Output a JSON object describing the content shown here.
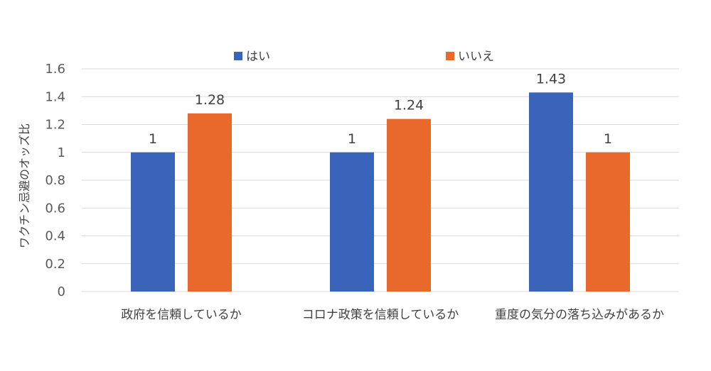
{
  "chart_data": {
    "type": "bar",
    "title": "",
    "xlabel": "",
    "ylabel": "ワクチン忌避のオッズ比",
    "categories": [
      "政府を信頼しているか",
      "コロナ政策を信頼しているか",
      "重度の気分の落ち込みがあるか"
    ],
    "series": [
      {
        "name": "はい",
        "color": "#3a64b9",
        "values": [
          1,
          1,
          1.43
        ]
      },
      {
        "name": "いいえ",
        "color": "#e8692b",
        "values": [
          1.28,
          1.24,
          1
        ]
      }
    ],
    "value_labels": [
      [
        "1",
        "1",
        "1.43"
      ],
      [
        "1.28",
        "1.24",
        "1"
      ]
    ],
    "ylim": [
      0,
      1.6
    ],
    "yticks": [
      "0",
      "0.2",
      "0.4",
      "0.6",
      "0.8",
      "1",
      "1.2",
      "1.4",
      "1.6"
    ],
    "grid": true,
    "legend_position": "top"
  }
}
